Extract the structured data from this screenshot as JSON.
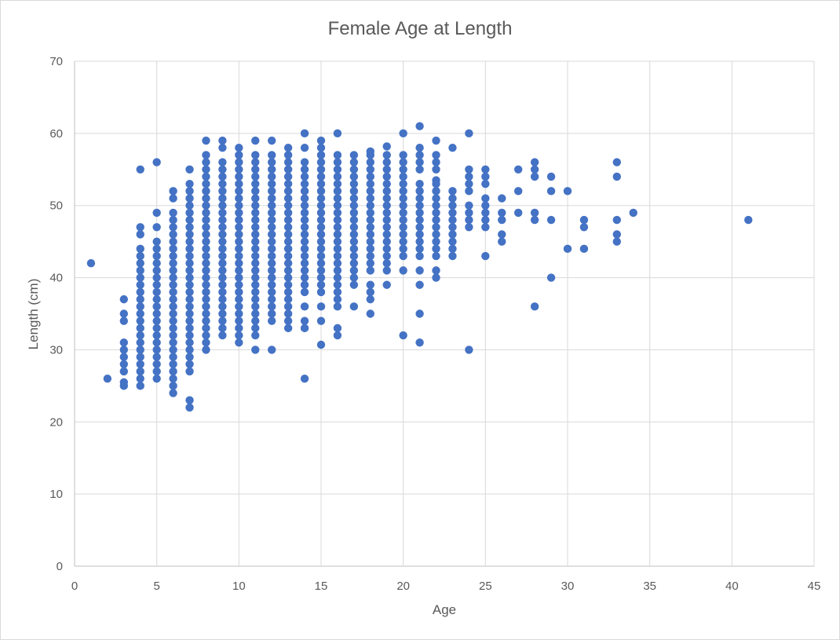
{
  "chart_data": {
    "type": "scatter",
    "title": "Female Age at Length",
    "xlabel": "Age",
    "ylabel": "Length (cm)",
    "xlim": [
      0,
      45
    ],
    "ylim": [
      0,
      70
    ],
    "xticks": [
      "0",
      "5",
      "10",
      "15",
      "20",
      "25",
      "30",
      "35",
      "40",
      "45"
    ],
    "yticks": [
      "0",
      "10",
      "20",
      "30",
      "40",
      "50",
      "60",
      "70"
    ],
    "grid": true,
    "legend": "none",
    "marker_color": "#4472C4",
    "columns": [
      {
        "x": 1,
        "y": [
          42
        ]
      },
      {
        "x": 2,
        "y": [
          26
        ]
      },
      {
        "x": 3,
        "y": [
          25,
          25.5,
          27,
          28,
          29,
          30,
          31,
          34,
          35,
          37
        ]
      },
      {
        "x": 4,
        "y": [
          25,
          26,
          27,
          28,
          29,
          30,
          31,
          32,
          33,
          34,
          35,
          36,
          37,
          38,
          39,
          40,
          41,
          42,
          43,
          44,
          46,
          47,
          55
        ]
      },
      {
        "x": 5,
        "y": [
          26,
          27,
          28,
          29,
          30,
          31,
          32,
          33,
          34,
          35,
          36,
          37,
          38,
          39,
          40,
          41,
          42,
          43,
          44,
          45,
          47,
          49,
          56
        ]
      },
      {
        "x": 6,
        "y": [
          24,
          25,
          26,
          27,
          28,
          29,
          30,
          31,
          32,
          33,
          34,
          35,
          36,
          37,
          38,
          39,
          40,
          41,
          42,
          43,
          44,
          45,
          46,
          47,
          48,
          49,
          51,
          52
        ]
      },
      {
        "x": 7,
        "y": [
          22,
          23,
          27,
          28,
          29,
          30,
          31,
          32,
          33,
          34,
          35,
          36,
          37,
          38,
          39,
          40,
          41,
          42,
          43,
          44,
          45,
          46,
          47,
          48,
          49,
          50,
          51,
          52,
          53,
          55
        ]
      },
      {
        "x": 8,
        "y": [
          30,
          31,
          32,
          33,
          34,
          35,
          36,
          37,
          38,
          39,
          40,
          41,
          42,
          43,
          44,
          45,
          46,
          47,
          48,
          49,
          50,
          51,
          52,
          53,
          54,
          55,
          56,
          57,
          59
        ]
      },
      {
        "x": 9,
        "y": [
          32,
          33,
          34,
          35,
          36,
          37,
          38,
          39,
          40,
          41,
          42,
          43,
          44,
          45,
          46,
          47,
          48,
          49,
          50,
          51,
          52,
          53,
          54,
          55,
          56,
          58,
          59
        ]
      },
      {
        "x": 10,
        "y": [
          31,
          32,
          33,
          34,
          35,
          36,
          37,
          38,
          39,
          40,
          41,
          42,
          43,
          44,
          45,
          46,
          47,
          48,
          49,
          50,
          51,
          52,
          53,
          54,
          55,
          56,
          57,
          58
        ]
      },
      {
        "x": 11,
        "y": [
          30,
          32,
          33,
          34,
          35,
          36,
          37,
          38,
          39,
          40,
          41,
          42,
          43,
          44,
          45,
          46,
          47,
          48,
          49,
          50,
          51,
          52,
          53,
          54,
          55,
          56,
          57,
          59
        ]
      },
      {
        "x": 12,
        "y": [
          30,
          34,
          35,
          36,
          37,
          38,
          39,
          40,
          41,
          42,
          43,
          44,
          45,
          46,
          47,
          48,
          49,
          50,
          51,
          52,
          53,
          54,
          55,
          56,
          57,
          59
        ]
      },
      {
        "x": 13,
        "y": [
          33,
          34,
          35,
          36,
          37,
          38,
          39,
          40,
          41,
          42,
          43,
          44,
          45,
          46,
          47,
          48,
          49,
          50,
          51,
          52,
          53,
          54,
          55,
          56,
          57,
          58
        ]
      },
      {
        "x": 14,
        "y": [
          26,
          33,
          34,
          36,
          38,
          39,
          40,
          41,
          42,
          43,
          44,
          45,
          46,
          47,
          48,
          49,
          50,
          51,
          52,
          53,
          54,
          55,
          56,
          58,
          60
        ]
      },
      {
        "x": 15,
        "y": [
          30.7,
          34,
          36,
          38,
          39,
          40,
          41,
          42,
          43,
          44,
          45,
          46,
          47,
          48,
          49,
          50,
          51,
          52,
          53,
          54,
          55,
          56,
          57,
          58,
          59
        ]
      },
      {
        "x": 16,
        "y": [
          32,
          33,
          36,
          37,
          38,
          39,
          40,
          41,
          42,
          43,
          44,
          45,
          46,
          47,
          48,
          49,
          50,
          51,
          52,
          53,
          54,
          55,
          56,
          57,
          60
        ]
      },
      {
        "x": 17,
        "y": [
          36,
          39,
          40,
          41,
          42,
          43,
          44,
          45,
          46,
          47,
          48,
          49,
          50,
          51,
          52,
          53,
          54,
          55,
          56,
          57
        ]
      },
      {
        "x": 18,
        "y": [
          35,
          37,
          38,
          39,
          41,
          42,
          43,
          44,
          45,
          46,
          47,
          48,
          49,
          50,
          51,
          52,
          53,
          54,
          55,
          56,
          57,
          57.5
        ]
      },
      {
        "x": 19,
        "y": [
          39,
          41,
          42,
          43,
          44,
          45,
          46,
          47,
          48,
          49,
          50,
          51,
          52,
          53,
          54,
          55,
          56,
          57,
          58.2
        ]
      },
      {
        "x": 20,
        "y": [
          32,
          41,
          43,
          44,
          45,
          46,
          47,
          48,
          49,
          50,
          51,
          52,
          53,
          54,
          55,
          56,
          57,
          60
        ]
      },
      {
        "x": 21,
        "y": [
          31,
          35,
          39,
          41,
          43,
          44,
          45,
          46,
          47,
          48,
          49,
          50,
          51,
          52,
          53,
          55,
          56,
          57,
          58,
          61
        ]
      },
      {
        "x": 22,
        "y": [
          40,
          41,
          43,
          44,
          45,
          46,
          47,
          48,
          49,
          50,
          51,
          52,
          53,
          53.5,
          55,
          56,
          57,
          59
        ]
      },
      {
        "x": 23,
        "y": [
          43,
          44,
          45,
          46,
          47,
          48,
          49,
          50,
          51,
          52,
          58
        ]
      },
      {
        "x": 24,
        "y": [
          30,
          47,
          48,
          49,
          50,
          52,
          53,
          54,
          55,
          60
        ]
      },
      {
        "x": 25,
        "y": [
          43,
          47,
          48,
          49,
          50,
          51,
          53,
          54,
          55
        ]
      },
      {
        "x": 26,
        "y": [
          45,
          46,
          48,
          49,
          51
        ]
      },
      {
        "x": 27,
        "y": [
          49,
          52,
          55
        ]
      },
      {
        "x": 28,
        "y": [
          36,
          48,
          49,
          54,
          55,
          56
        ]
      },
      {
        "x": 29,
        "y": [
          40,
          48,
          52,
          54
        ]
      },
      {
        "x": 30,
        "y": [
          44,
          52
        ]
      },
      {
        "x": 31,
        "y": [
          44,
          47,
          48
        ]
      },
      {
        "x": 33,
        "y": [
          45,
          46,
          48,
          54,
          56
        ]
      },
      {
        "x": 34,
        "y": [
          49
        ]
      },
      {
        "x": 41,
        "y": [
          48
        ]
      }
    ]
  }
}
